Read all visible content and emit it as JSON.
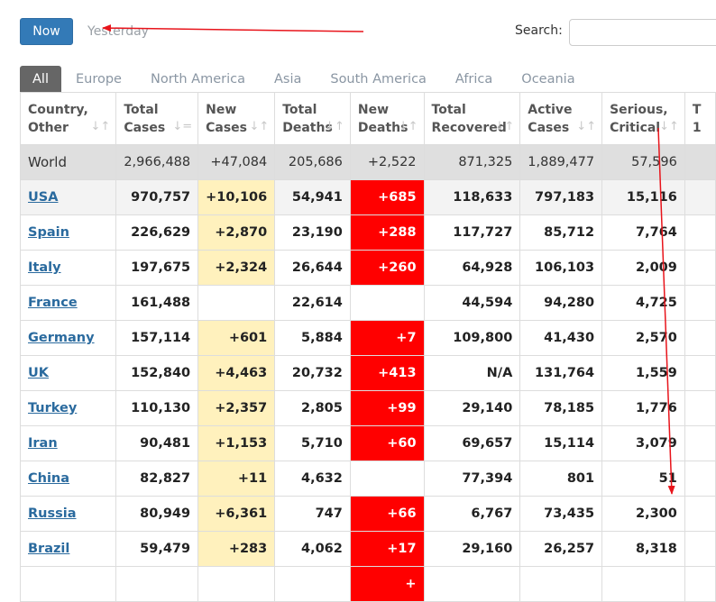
{
  "toolbar": {
    "now_label": "Now",
    "yesterday_label": "Yesterday",
    "search_label": "Search:",
    "search_value": ""
  },
  "tabs": [
    "All",
    "Europe",
    "North America",
    "Asia",
    "South America",
    "Africa",
    "Oceania"
  ],
  "table": {
    "headers": [
      {
        "line1": "Country,",
        "line2": "Other"
      },
      {
        "line1": "Total",
        "line2": "Cases"
      },
      {
        "line1": "New",
        "line2": "Cases"
      },
      {
        "line1": "Total",
        "line2": "Deaths"
      },
      {
        "line1": "New",
        "line2": "Deaths"
      },
      {
        "line1": "Total",
        "line2": "Recovered"
      },
      {
        "line1": "Active",
        "line2": "Cases"
      },
      {
        "line1": "Serious,",
        "line2": "Critical"
      },
      {
        "line1": "T",
        "line2": "1"
      }
    ],
    "rows": [
      {
        "country": "World",
        "total_cases": "2,966,488",
        "new_cases": "+47,084",
        "total_deaths": "205,686",
        "new_deaths": "+2,522",
        "total_recovered": "871,325",
        "active_cases": "1,889,477",
        "serious": "57,596"
      },
      {
        "country": "USA",
        "total_cases": "970,757",
        "new_cases": "+10,106",
        "total_deaths": "54,941",
        "new_deaths": "+685",
        "total_recovered": "118,633",
        "active_cases": "797,183",
        "serious": "15,116"
      },
      {
        "country": "Spain",
        "total_cases": "226,629",
        "new_cases": "+2,870",
        "total_deaths": "23,190",
        "new_deaths": "+288",
        "total_recovered": "117,727",
        "active_cases": "85,712",
        "serious": "7,764"
      },
      {
        "country": "Italy",
        "total_cases": "197,675",
        "new_cases": "+2,324",
        "total_deaths": "26,644",
        "new_deaths": "+260",
        "total_recovered": "64,928",
        "active_cases": "106,103",
        "serious": "2,009"
      },
      {
        "country": "France",
        "total_cases": "161,488",
        "new_cases": "",
        "total_deaths": "22,614",
        "new_deaths": "",
        "total_recovered": "44,594",
        "active_cases": "94,280",
        "serious": "4,725"
      },
      {
        "country": "Germany",
        "total_cases": "157,114",
        "new_cases": "+601",
        "total_deaths": "5,884",
        "new_deaths": "+7",
        "total_recovered": "109,800",
        "active_cases": "41,430",
        "serious": "2,570"
      },
      {
        "country": "UK",
        "total_cases": "152,840",
        "new_cases": "+4,463",
        "total_deaths": "20,732",
        "new_deaths": "+413",
        "total_recovered": "N/A",
        "active_cases": "131,764",
        "serious": "1,559"
      },
      {
        "country": "Turkey",
        "total_cases": "110,130",
        "new_cases": "+2,357",
        "total_deaths": "2,805",
        "new_deaths": "+99",
        "total_recovered": "29,140",
        "active_cases": "78,185",
        "serious": "1,776"
      },
      {
        "country": "Iran",
        "total_cases": "90,481",
        "new_cases": "+1,153",
        "total_deaths": "5,710",
        "new_deaths": "+60",
        "total_recovered": "69,657",
        "active_cases": "15,114",
        "serious": "3,079"
      },
      {
        "country": "China",
        "total_cases": "82,827",
        "new_cases": "+11",
        "total_deaths": "4,632",
        "new_deaths": "",
        "total_recovered": "77,394",
        "active_cases": "801",
        "serious": "51"
      },
      {
        "country": "Russia",
        "total_cases": "80,949",
        "new_cases": "+6,361",
        "total_deaths": "747",
        "new_deaths": "+66",
        "total_recovered": "6,767",
        "active_cases": "73,435",
        "serious": "2,300"
      },
      {
        "country": "Brazil",
        "total_cases": "59,479",
        "new_cases": "+283",
        "total_deaths": "4,062",
        "new_deaths": "+17",
        "total_recovered": "29,160",
        "active_cases": "26,257",
        "serious": "8,318"
      },
      {
        "country": "",
        "total_cases": "",
        "new_cases": "",
        "total_deaths": "",
        "new_deaths": "+",
        "total_recovered": "",
        "active_cases": "",
        "serious": ""
      }
    ]
  },
  "colors": {
    "new_cases_highlight": "#fff1bd",
    "new_deaths_highlight": "#ff0000",
    "annotation_arrow": "#e8141b",
    "primary_button": "#337ab7"
  }
}
